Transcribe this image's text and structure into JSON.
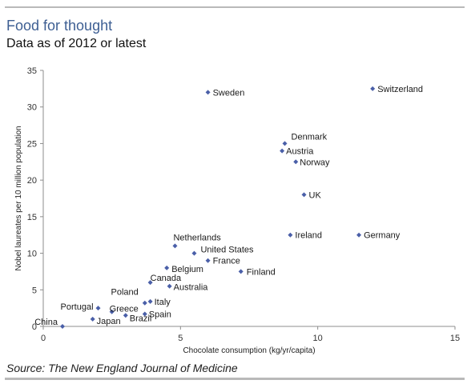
{
  "header": {
    "title": "Food for thought",
    "subtitle": "Data as of 2012 or latest"
  },
  "footer": {
    "source": "Source: The New England Journal of Medicine"
  },
  "colors": {
    "accent": "#3e5f93",
    "point": "#4a5fa8",
    "axis": "#8c8c8c",
    "rule": "#b9b9b9"
  },
  "chart_data": {
    "type": "scatter",
    "title": "",
    "xlabel": "Chocolate consumption (kg/yr/capita)",
    "ylabel": "Nobel laureates per 10 million population",
    "xlim": [
      0,
      15
    ],
    "ylim": [
      0,
      35
    ],
    "xticks": [
      0,
      5,
      10,
      15
    ],
    "yticks": [
      0,
      5,
      10,
      15,
      20,
      25,
      30,
      35
    ],
    "grid": false,
    "points": [
      {
        "label": "Switzerland",
        "x": 12.0,
        "y": 32.5
      },
      {
        "label": "Sweden",
        "x": 6.0,
        "y": 32.0
      },
      {
        "label": "Denmark",
        "x": 8.8,
        "y": 25.0
      },
      {
        "label": "Austria",
        "x": 8.7,
        "y": 24.0
      },
      {
        "label": "Norway",
        "x": 9.2,
        "y": 22.5
      },
      {
        "label": "UK",
        "x": 9.5,
        "y": 18.0
      },
      {
        "label": "Ireland",
        "x": 9.0,
        "y": 12.5
      },
      {
        "label": "Germany",
        "x": 11.5,
        "y": 12.5
      },
      {
        "label": "Netherlands",
        "x": 4.8,
        "y": 11.0
      },
      {
        "label": "United States",
        "x": 5.5,
        "y": 10.0
      },
      {
        "label": "France",
        "x": 6.0,
        "y": 9.0
      },
      {
        "label": "Finland",
        "x": 7.2,
        "y": 7.5
      },
      {
        "label": "Belgium",
        "x": 4.5,
        "y": 8.0
      },
      {
        "label": "Canada",
        "x": 3.9,
        "y": 6.0
      },
      {
        "label": "Australia",
        "x": 4.6,
        "y": 5.5
      },
      {
        "label": "Poland",
        "x": 3.7,
        "y": 3.2
      },
      {
        "label": "Italy",
        "x": 3.9,
        "y": 3.4
      },
      {
        "label": "Portugal",
        "x": 2.0,
        "y": 2.5
      },
      {
        "label": "Greece",
        "x": 2.5,
        "y": 2.0
      },
      {
        "label": "Spain",
        "x": 3.7,
        "y": 1.7
      },
      {
        "label": "Brazil",
        "x": 3.0,
        "y": 1.5
      },
      {
        "label": "Japan",
        "x": 1.8,
        "y": 1.0
      },
      {
        "label": "China",
        "x": 0.7,
        "y": 0.0
      }
    ]
  }
}
